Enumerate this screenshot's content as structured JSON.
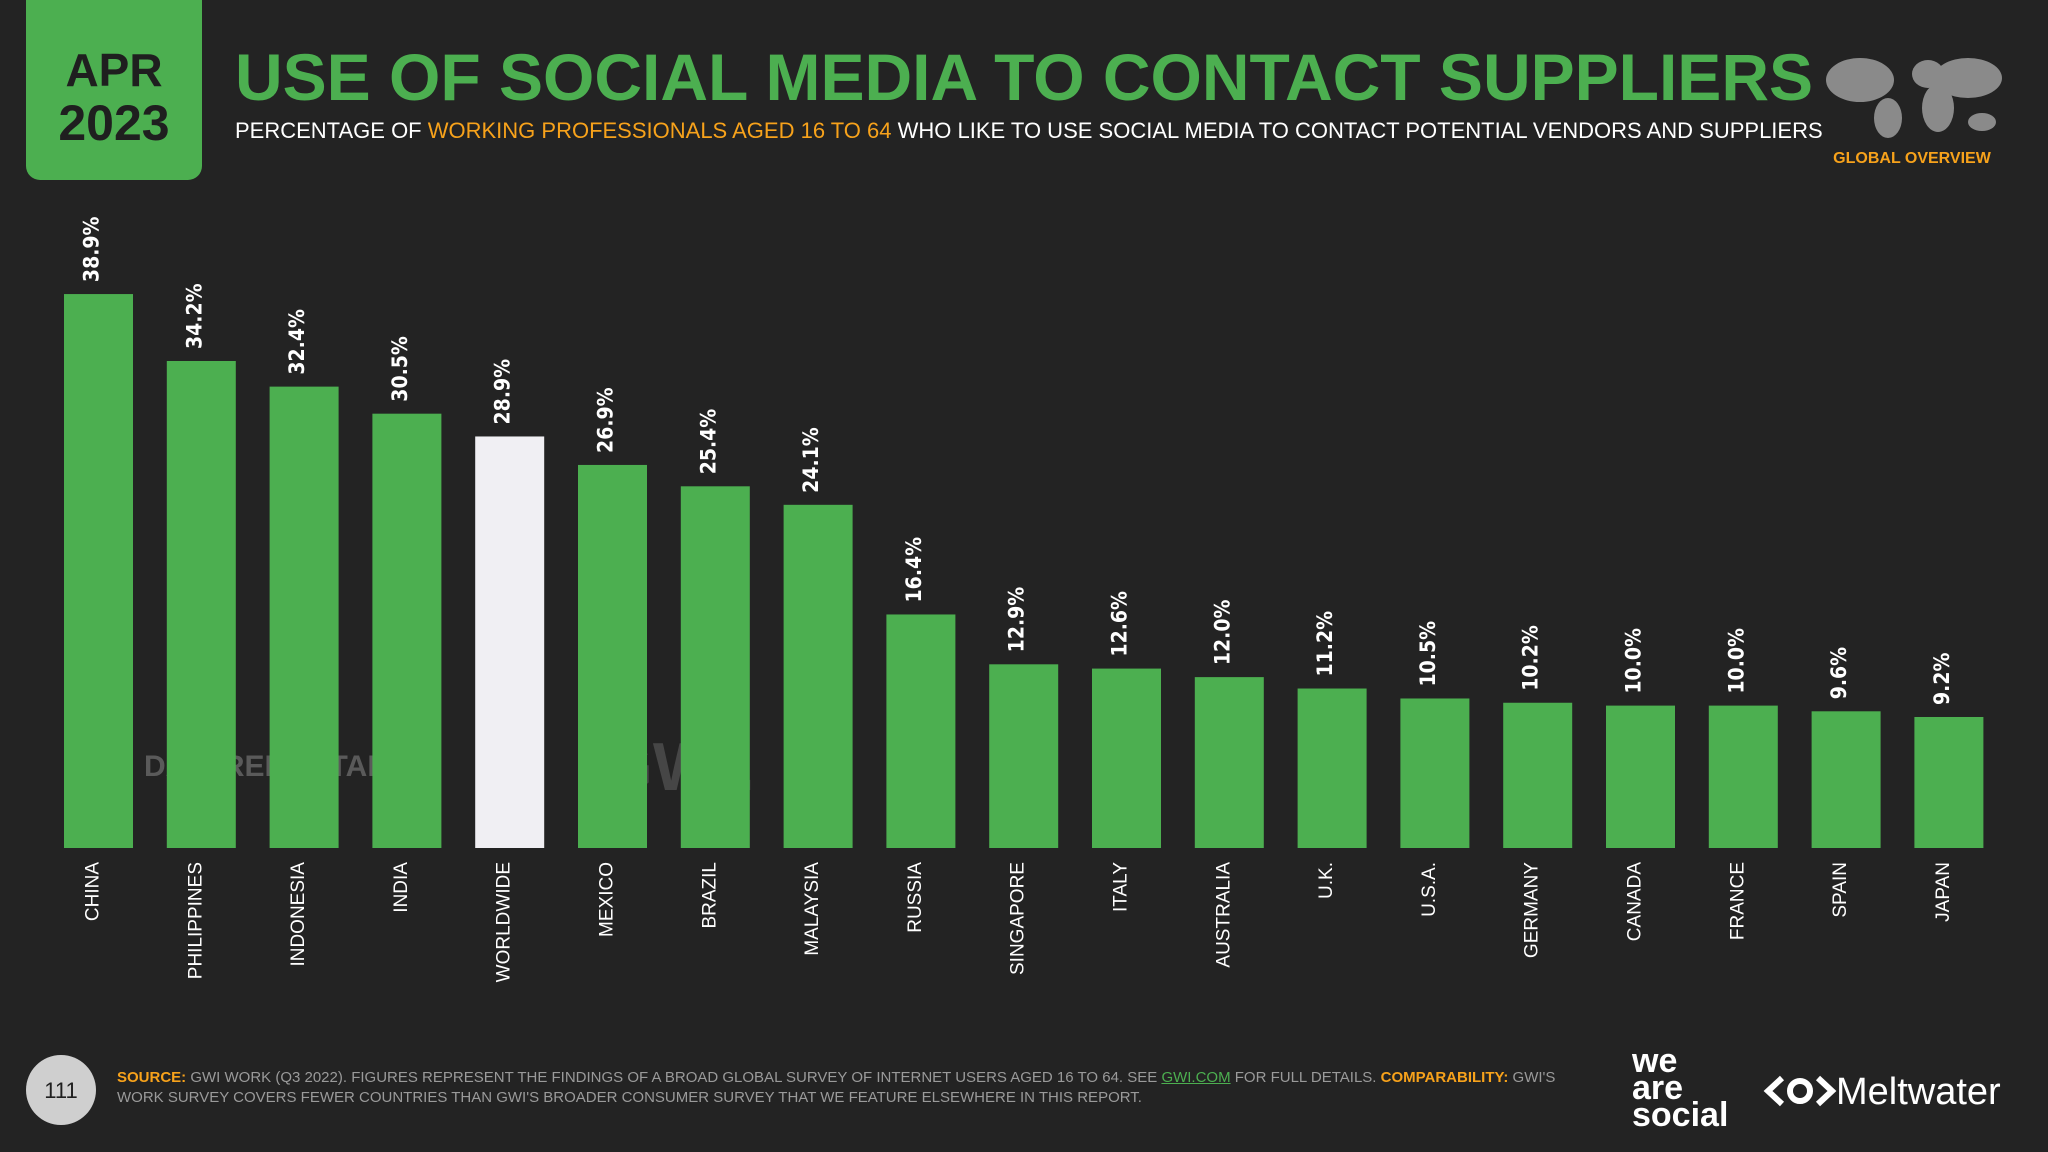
{
  "badge": {
    "month": "APR",
    "year": "2023"
  },
  "header": {
    "title": "USE OF SOCIAL MEDIA TO CONTACT SUPPLIERS",
    "subtitle_parts": [
      "PERCENTAGE OF ",
      "WORKING PROFESSIONALS AGED 16 TO 64",
      " WHO LIKE TO USE SOCIAL MEDIA TO CONTACT POTENTIAL VENDORS AND SUPPLIERS"
    ],
    "region": "GLOBAL OVERVIEW"
  },
  "chart_data": {
    "type": "bar",
    "categories": [
      "CHINA",
      "PHILIPPINES",
      "INDONESIA",
      "INDIA",
      "WORLDWIDE",
      "MEXICO",
      "BRAZIL",
      "MALAYSIA",
      "RUSSIA",
      "SINGAPORE",
      "ITALY",
      "AUSTRALIA",
      "U.K.",
      "U.S.A.",
      "GERMANY",
      "CANADA",
      "FRANCE",
      "SPAIN",
      "JAPAN"
    ],
    "values": [
      38.9,
      34.2,
      32.4,
      30.5,
      28.9,
      26.9,
      25.4,
      24.1,
      16.4,
      12.9,
      12.6,
      12.0,
      11.2,
      10.5,
      10.2,
      10.0,
      10.0,
      9.6,
      9.2
    ],
    "value_labels": [
      "38.9%",
      "34.2%",
      "32.4%",
      "30.5%",
      "28.9%",
      "26.9%",
      "25.4%",
      "24.1%",
      "16.4%",
      "12.9%",
      "12.6%",
      "12.0%",
      "11.2%",
      "10.5%",
      "10.2%",
      "10.0%",
      "10.0%",
      "9.6%",
      "9.2%"
    ],
    "colors": [
      "#4caf50",
      "#4caf50",
      "#4caf50",
      "#4caf50",
      "#f0eff3",
      "#4caf50",
      "#4caf50",
      "#4caf50",
      "#4caf50",
      "#4caf50",
      "#4caf50",
      "#4caf50",
      "#4caf50",
      "#4caf50",
      "#4caf50",
      "#4caf50",
      "#4caf50",
      "#4caf50",
      "#4caf50"
    ]
  },
  "watermarks": [
    "DATAREPORTAL",
    "GWI."
  ],
  "footer": {
    "page": "111",
    "source_label": "SOURCE:",
    "source_text": " GWI WORK (Q3 2022). FIGURES REPRESENT THE FINDINGS OF A BROAD GLOBAL SURVEY OF INTERNET USERS AGED 16 TO 64. SEE ",
    "source_link": "GWI.COM",
    "source_tail": " FOR FULL DETAILS. ",
    "comparability_label": "COMPARABILITY:",
    "comparability_text": " GWI'S WORK SURVEY COVERS FEWER COUNTRIES THAN GWI'S BROADER CONSUMER SURVEY THAT WE FEATURE ELSEWHERE IN THIS REPORT.",
    "brand1": [
      "we",
      "are",
      "social"
    ],
    "brand2": "Meltwater"
  }
}
